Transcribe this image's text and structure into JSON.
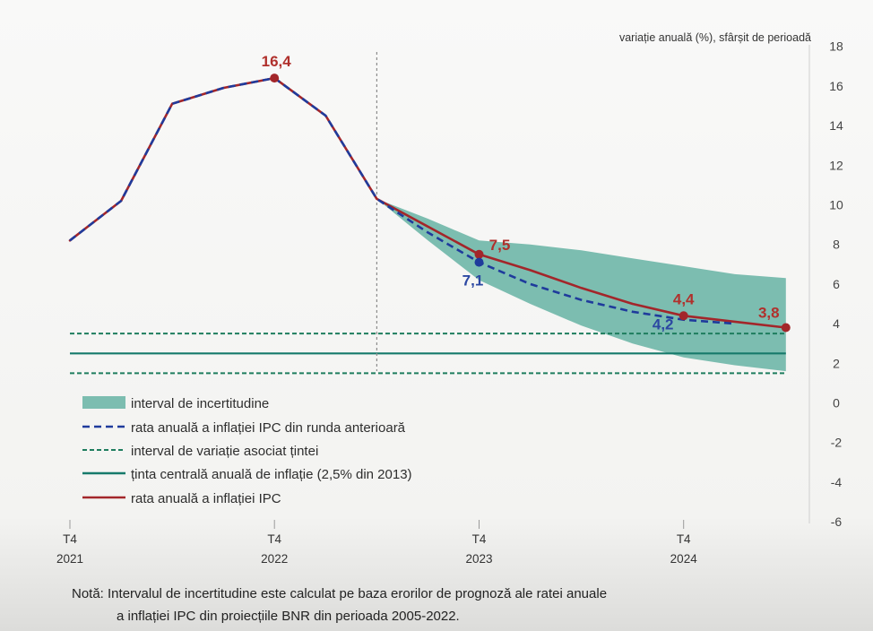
{
  "chart_data": {
    "type": "line",
    "ylabel": "variație anuală (%), sfârșit de perioadă",
    "y_axis_side": "right",
    "ylim": [
      -6,
      18
    ],
    "yticks": [
      18,
      16,
      14,
      12,
      10,
      8,
      6,
      4,
      2,
      0,
      -2,
      -4,
      -6
    ],
    "grid": false,
    "categories": [
      "T4 2021",
      "T1 2022",
      "T2 2022",
      "T3 2022",
      "T4 2022",
      "T1 2023",
      "T2 2023",
      "T3 2023",
      "T4 2023",
      "T1 2024",
      "T2 2024",
      "T3 2024",
      "T4 2024",
      "T1 2025",
      "T2 2025"
    ],
    "xtick_labels": [
      {
        "quarter": "T4",
        "year": "2021"
      },
      {
        "quarter": "T4",
        "year": "2022"
      },
      {
        "quarter": "T4",
        "year": "2023"
      },
      {
        "quarter": "T4",
        "year": "2024"
      }
    ],
    "series": [
      {
        "name": "rata anuală a inflației IPC",
        "color": "#a3262a",
        "style": "solid",
        "values": [
          8.2,
          10.2,
          15.1,
          15.9,
          16.4,
          14.5,
          10.3,
          8.9,
          7.5,
          6.7,
          5.8,
          5.0,
          4.4,
          4.1,
          3.8
        ]
      },
      {
        "name": "rata anuală a inflației IPC din runda anterioară",
        "color": "#1f3b9c",
        "style": "dashed",
        "values": [
          8.2,
          10.2,
          15.1,
          15.9,
          16.4,
          14.5,
          10.3,
          8.6,
          7.1,
          6.0,
          5.2,
          4.6,
          4.2,
          4.0,
          null
        ]
      }
    ],
    "uncertainty_band": {
      "name": "interval de incertitudine",
      "color": "#7cbdb0",
      "start": "T2 2023",
      "lower": [
        10.3,
        8.2,
        6.2,
        5.0,
        3.9,
        3.0,
        2.3,
        1.9,
        1.6
      ],
      "upper": [
        10.3,
        9.3,
        8.2,
        8.0,
        7.7,
        7.3,
        6.9,
        6.5,
        6.3
      ]
    },
    "target_interval": {
      "name": "interval de variație asociat țintei",
      "color": "#1e7d5e",
      "style": "dashed",
      "values": [
        1.5,
        3.5
      ]
    },
    "target_central": {
      "name": "ținta centrală anuală de inflație (2,5% din 2013)",
      "color": "#167a6b",
      "style": "solid",
      "value": 2.5
    },
    "forecast_start": "T2 2023",
    "data_labels": [
      {
        "text": "16,4",
        "series": 0,
        "category": "T4 2022",
        "color": "#b0302c",
        "marker": true
      },
      {
        "text": "7,5",
        "series": 0,
        "category": "T4 2023",
        "color": "#b0302c",
        "marker": true
      },
      {
        "text": "7,1",
        "series": 1,
        "category": "T4 2023",
        "color": "#2c48a2",
        "marker": true
      },
      {
        "text": "4,4",
        "series": 0,
        "category": "T4 2024",
        "color": "#b0302c",
        "marker": true
      },
      {
        "text": "4,2",
        "series": 1,
        "category": "T4 2024",
        "color": "#2c48a2",
        "marker": false
      },
      {
        "text": "3,8",
        "series": 0,
        "category": "T2 2025",
        "color": "#b0302c",
        "marker": true
      }
    ],
    "legend": "bottom-left"
  },
  "note": {
    "line1": "Notă: Intervalul de incertitudine este calculat pe baza erorilor de prognoză ale ratei anuale",
    "line2": "a inflației IPC din proiecțiile BNR din perioada 2005-2022."
  }
}
